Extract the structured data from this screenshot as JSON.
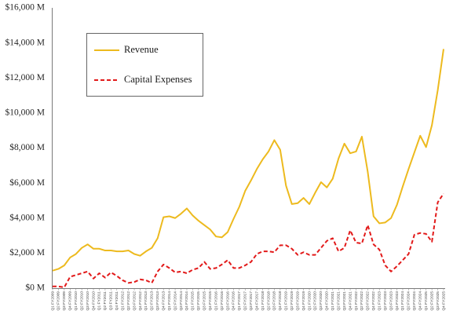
{
  "chart_data": {
    "type": "line",
    "x": [
      "Q1 FY2009",
      "Q2 FY2009",
      "Q3 FY2009",
      "Q4 FY2009",
      "Q1 FY2010",
      "Q2 FY2010",
      "Q3 FY2010",
      "Q4 FY2010",
      "Q1 FY2011",
      "Q2 FY2011",
      "Q3 FY2011",
      "Q4 FY2011",
      "Q1 FY2012",
      "Q2 FY2012",
      "Q3 FY2012",
      "Q4 FY2012",
      "Q1 FY2013",
      "Q2 FY2013",
      "Q3 FY2013",
      "Q4 FY2013",
      "Q1 FY2014",
      "Q2 FY2014",
      "Q3 FY2014",
      "Q4 FY2014",
      "Q1 FY2015",
      "Q2 FY2015",
      "Q3 FY2015",
      "Q4 FY2015",
      "Q1 FY2016",
      "Q2 FY2016",
      "Q3 FY2016",
      "Q4 FY2016",
      "Q1 FY2017",
      "Q2 FY2017",
      "Q3 FY2017",
      "Q4 FY2017",
      "Q1 FY2018",
      "Q2 FY2018",
      "Q3 FY2018",
      "Q4 FY2018",
      "Q1 FY2019",
      "Q2 FY2019",
      "Q3 FY2019",
      "Q4 FY2019",
      "Q1 FY2020",
      "Q2 FY2020",
      "Q3 FY2020",
      "Q4 FY2020",
      "Q1 FY2021",
      "Q2 FY2021",
      "Q3 FY2021",
      "Q4 FY2021",
      "Q1 FY2022",
      "Q2 FY2022",
      "Q3 FY2022",
      "Q4 FY2022",
      "Q1 FY2023",
      "Q2 FY2023",
      "Q3 FY2023",
      "Q4 FY2023",
      "Q1 FY2024",
      "Q2 FY2024",
      "Q3 FY2024",
      "Q4 FY2024",
      "Q1 FY2025",
      "Q2 FY2025",
      "Q3 FY2025",
      "Q4 FY2025"
    ],
    "series": [
      {
        "name": "Revenue",
        "color": "#EDBA1E",
        "line_style": "solid",
        "values": [
          1000,
          1100,
          1300,
          1750,
          1950,
          2300,
          2500,
          2250,
          2250,
          2150,
          2150,
          2100,
          2100,
          2150,
          1950,
          1850,
          2100,
          2300,
          2850,
          4050,
          4100,
          4000,
          4250,
          4550,
          4150,
          3850,
          3600,
          3350,
          2950,
          2900,
          3200,
          3950,
          4650,
          5550,
          6150,
          6800,
          7350,
          7800,
          8450,
          7900,
          5850,
          4800,
          4850,
          5150,
          4800,
          5450,
          6050,
          5750,
          6250,
          7400,
          8250,
          7700,
          7800,
          8650,
          6650,
          4100,
          3700,
          3750,
          4000,
          4750,
          5800,
          6800,
          7750,
          8700,
          8050,
          9300,
          11300,
          13650
        ]
      },
      {
        "name": "Capital Expenses",
        "color": "#E21A1A",
        "line_style": "dashed",
        "values": [
          100,
          100,
          50,
          650,
          750,
          850,
          950,
          550,
          850,
          600,
          900,
          700,
          450,
          300,
          350,
          500,
          450,
          300,
          950,
          1350,
          1150,
          900,
          950,
          850,
          1050,
          1150,
          1500,
          1100,
          1150,
          1350,
          1600,
          1150,
          1150,
          1300,
          1500,
          1950,
          2100,
          2100,
          2050,
          2450,
          2450,
          2250,
          1900,
          2050,
          1900,
          1900,
          2300,
          2700,
          2850,
          2100,
          2300,
          3300,
          2600,
          2550,
          3600,
          2500,
          2200,
          1300,
          950,
          1250,
          1600,
          1950,
          3050,
          3150,
          3100,
          2650,
          4900,
          5400
        ]
      }
    ],
    "ylim": [
      0,
      16000
    ],
    "y_ticks": [
      0,
      2000,
      4000,
      6000,
      8000,
      10000,
      12000,
      14000,
      16000
    ],
    "y_tick_labels": [
      "$0 M",
      "$2,000 M",
      "$4,000 M",
      "$6,000 M",
      "$8,000 M",
      "$10,000 M",
      "$12,000 M",
      "$14,000 M",
      "$16,000 M"
    ],
    "grid": false,
    "legend_position": "top-left"
  }
}
